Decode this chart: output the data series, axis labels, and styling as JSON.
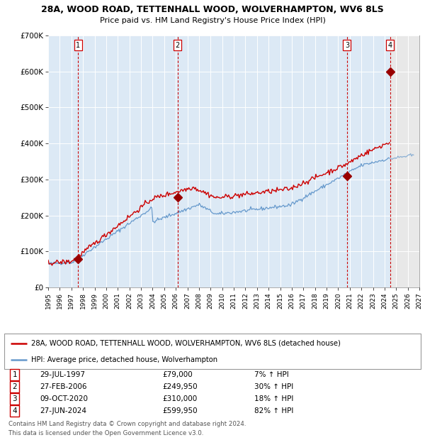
{
  "title1": "28A, WOOD ROAD, TETTENHALL WOOD, WOLVERHAMPTON, WV6 8LS",
  "title2": "Price paid vs. HM Land Registry's House Price Index (HPI)",
  "legend_line1": "28A, WOOD ROAD, TETTENHALL WOOD, WOLVERHAMPTON, WV6 8LS (detached house)",
  "legend_line2": "HPI: Average price, detached house, Wolverhampton",
  "footer1": "Contains HM Land Registry data © Crown copyright and database right 2024.",
  "footer2": "This data is licensed under the Open Government Licence v3.0.",
  "sale_points": [
    {
      "num": 1,
      "date": "29-JUL-1997",
      "price": 79000,
      "pct": "7%",
      "year": 1997.57
    },
    {
      "num": 2,
      "date": "27-FEB-2006",
      "price": 249950,
      "pct": "30%",
      "year": 2006.16
    },
    {
      "num": 3,
      "date": "09-OCT-2020",
      "price": 310000,
      "pct": "18%",
      "year": 2020.77
    },
    {
      "num": 4,
      "date": "27-JUN-2024",
      "price": 599950,
      "pct": "82%",
      "year": 2024.49
    }
  ],
  "xmin": 1995.0,
  "xmax": 2027.0,
  "ymin": 0,
  "ymax": 700000,
  "yticks": [
    0,
    100000,
    200000,
    300000,
    400000,
    500000,
    600000,
    700000
  ],
  "ylabels": [
    "£0",
    "£100K",
    "£200K",
    "£300K",
    "£400K",
    "£500K",
    "£600K",
    "£700K"
  ],
  "bg_color": "#dce9f5",
  "hatch_start": 2024.49,
  "red_line_color": "#cc0000",
  "blue_line_color": "#6699cc",
  "grid_color": "#ffffff",
  "sale_marker_color": "#990000"
}
